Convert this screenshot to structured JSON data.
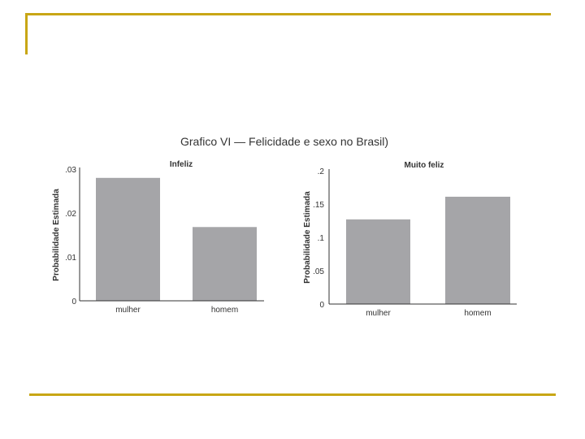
{
  "colors": {
    "accent": "#c8a615",
    "bar": "#a5a5a8",
    "axis": "#333333"
  },
  "figure_title": "Grafico VI — Felicidade e sexo no Brasil)",
  "chart_data": [
    {
      "type": "bar",
      "title": "Infeliz",
      "ylabel": "Probabilidade Estimada",
      "xlabel": "",
      "categories": [
        "mulher",
        "homem"
      ],
      "values": [
        0.028,
        0.0168
      ],
      "ylim": [
        0,
        0.03
      ],
      "yticks": [
        0,
        0.01,
        0.02,
        0.03
      ],
      "ytick_labels": [
        "0",
        ".01",
        ".02",
        ".03"
      ],
      "grid": false,
      "legend": "none"
    },
    {
      "type": "bar",
      "title": "Muito feliz",
      "ylabel": "Probabilidade Estimada",
      "xlabel": "",
      "categories": [
        "mulher",
        "homem"
      ],
      "values": [
        0.127,
        0.161
      ],
      "ylim": [
        0,
        0.2
      ],
      "yticks": [
        0,
        0.05,
        0.1,
        0.15,
        0.2
      ],
      "ytick_labels": [
        "0",
        ".05",
        ".1",
        ".15",
        ".2"
      ],
      "grid": false,
      "legend": "none"
    }
  ]
}
